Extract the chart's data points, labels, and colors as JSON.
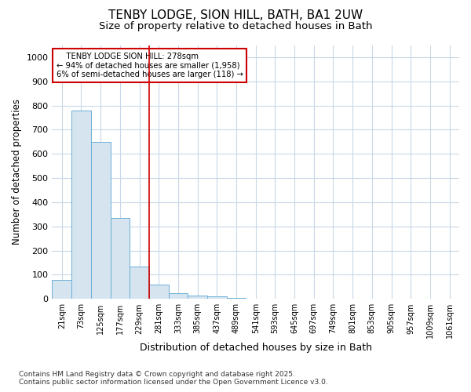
{
  "title1": "TENBY LODGE, SION HILL, BATH, BA1 2UW",
  "title2": "Size of property relative to detached houses in Bath",
  "xlabel": "Distribution of detached houses by size in Bath",
  "ylabel": "Number of detached properties",
  "bin_labels": [
    "21sqm",
    "73sqm",
    "125sqm",
    "177sqm",
    "229sqm",
    "281sqm",
    "333sqm",
    "385sqm",
    "437sqm",
    "489sqm",
    "541sqm",
    "593sqm",
    "645sqm",
    "697sqm",
    "749sqm",
    "801sqm",
    "853sqm",
    "905sqm",
    "957sqm",
    "1009sqm",
    "1061sqm"
  ],
  "bar_heights": [
    80,
    780,
    648,
    335,
    135,
    58,
    25,
    15,
    10,
    5,
    0,
    0,
    0,
    0,
    0,
    0,
    0,
    0,
    0,
    0,
    0
  ],
  "bar_color": "#d6e4f0",
  "bar_edge_color": "#6aaed6",
  "vline_x_index": 5,
  "vline_color": "#cc0000",
  "annotation_line1": "    TENBY LODGE SION HILL: 278sqm",
  "annotation_line2": "← 94% of detached houses are smaller (1,958)",
  "annotation_line3": "6% of semi-detached houses are larger (118) →",
  "annotation_box_color": "#ffffff",
  "annotation_box_edge": "#cc0000",
  "ylim": [
    0,
    1050
  ],
  "yticks": [
    0,
    100,
    200,
    300,
    400,
    500,
    600,
    700,
    800,
    900,
    1000
  ],
  "footer1": "Contains HM Land Registry data © Crown copyright and database right 2025.",
  "footer2": "Contains public sector information licensed under the Open Government Licence v3.0.",
  "bg_color": "#ffffff",
  "grid_color": "#c8d8e8",
  "title_fontsize": 11,
  "subtitle_fontsize": 9.5
}
